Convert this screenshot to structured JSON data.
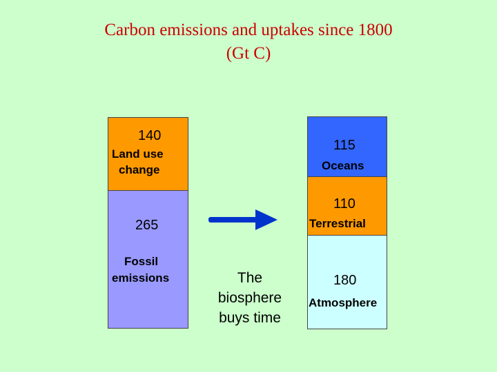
{
  "title": {
    "line1": "Carbon emissions and uptakes since 1800",
    "line2": "(Gt C)"
  },
  "emissions": {
    "land_use": {
      "value": "140",
      "label_line1": "Land use",
      "label_line2": "change"
    },
    "fossil": {
      "value": "265",
      "label_line1": "Fossil",
      "label_line2": "emissions"
    }
  },
  "uptakes": {
    "oceans": {
      "value": "115",
      "label": "Oceans"
    },
    "terrestrial": {
      "value": "110",
      "label": "Terrestrial"
    },
    "atmosphere": {
      "value": "180",
      "label": "Atmosphere"
    }
  },
  "note": {
    "line1": "The",
    "line2": "biosphere",
    "line3": "buys time"
  },
  "colors": {
    "background": "#ccffcc",
    "title": "#cc0000",
    "land_use": "#ff9900",
    "fossil": "#9999ff",
    "oceans": "#3366ff",
    "terrestrial": "#ff9900",
    "atmosphere": "#ccffff",
    "arrow": "#0033cc"
  },
  "icons": {
    "arrow": "right-arrow-icon"
  }
}
